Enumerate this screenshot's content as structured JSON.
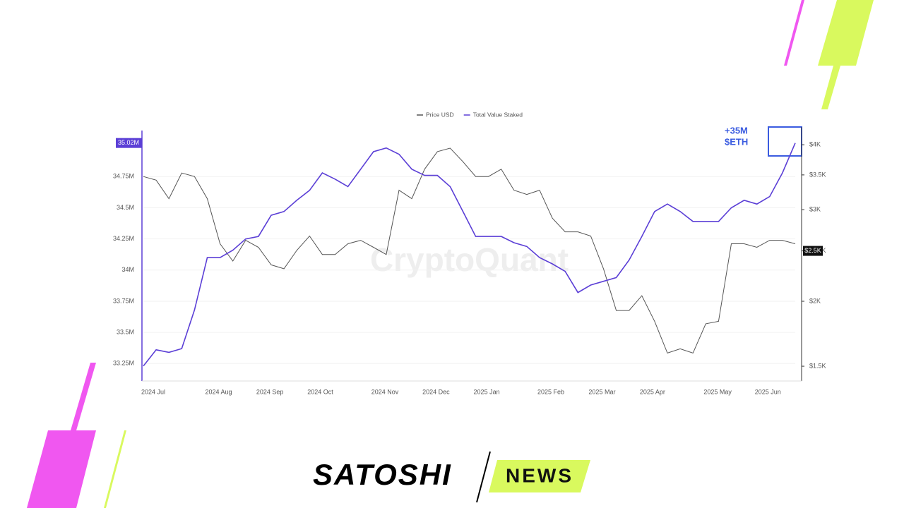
{
  "chart_data": {
    "type": "line",
    "legend": "top",
    "grid": true,
    "watermark": "CryptoQuant",
    "annotation": [
      "+35M",
      "$ETH"
    ],
    "categories": [
      "2024 Jul",
      null,
      null,
      null,
      null,
      "2024 Aug",
      null,
      null,
      null,
      "2024 Sep",
      null,
      null,
      null,
      "2024 Oct",
      null,
      null,
      null,
      null,
      "2024 Nov",
      null,
      null,
      null,
      "2024 Dec",
      null,
      null,
      null,
      "2025 Jan",
      null,
      null,
      null,
      null,
      "2025 Feb",
      null,
      null,
      null,
      "2025 Mar",
      null,
      null,
      null,
      "2025 Apr",
      null,
      null,
      null,
      null,
      "2025 May",
      null,
      null,
      null,
      "2025 Jun",
      null,
      null,
      null
    ],
    "series": [
      {
        "name": "Price USD",
        "color": "#555555",
        "axis": "y2",
        "values": [
          3475,
          3420,
          3150,
          3530,
          3475,
          3150,
          2580,
          2390,
          2620,
          2540,
          2350,
          2310,
          2505,
          2670,
          2460,
          2460,
          2580,
          2620,
          2540,
          2460,
          3270,
          3150,
          3590,
          3880,
          3940,
          3710,
          3475,
          3475,
          3590,
          3270,
          3210,
          3270,
          2890,
          2720,
          2720,
          2670,
          2310,
          1920,
          1920,
          2050,
          1830,
          1590,
          1620,
          1590,
          1810,
          1830,
          2580,
          2580,
          2540,
          2620,
          2620,
          2580
        ]
      },
      {
        "name": "Total Value Staked",
        "color": "#5b3fd6",
        "values": [
          33.23,
          33.36,
          33.34,
          33.37,
          33.68,
          34.1,
          34.1,
          34.16,
          34.25,
          34.27,
          34.44,
          34.47,
          34.56,
          34.64,
          34.78,
          34.73,
          34.67,
          34.81,
          34.95,
          34.98,
          34.93,
          34.81,
          34.76,
          34.76,
          34.67,
          34.47,
          34.27,
          34.27,
          34.27,
          34.22,
          34.19,
          34.1,
          34.05,
          33.99,
          33.82,
          33.88,
          33.91,
          33.94,
          34.08,
          34.27,
          34.47,
          34.53,
          34.47,
          34.39,
          34.39,
          34.39,
          34.5,
          34.56,
          34.53,
          34.59,
          34.78,
          35.02
        ]
      }
    ],
    "ylim": [
      33.11,
      35.12
    ],
    "yticks": [
      {
        "value": 33.25,
        "label": "33.25M"
      },
      {
        "value": 33.5,
        "label": "33.5M"
      },
      {
        "value": 33.75,
        "label": "33.75M"
      },
      {
        "value": 34,
        "label": "34M"
      },
      {
        "value": 34.25,
        "label": "34.25M"
      },
      {
        "value": 34.5,
        "label": "34.5M"
      },
      {
        "value": 34.75,
        "label": "34.75M"
      }
    ],
    "y2scale": "log",
    "y2lim": [
      1405,
      4260
    ],
    "y2ticks": [
      {
        "value": 1500,
        "label": "$1.5K"
      },
      {
        "value": 2000,
        "label": "$2K"
      },
      {
        "value": 2500,
        "label": "$2.5K"
      },
      {
        "value": 3000,
        "label": "$3K"
      },
      {
        "value": 3500,
        "label": "$3.5K"
      },
      {
        "value": 4000,
        "label": "$4K"
      }
    ],
    "markers": [
      {
        "axis": "y",
        "value": 35.02,
        "label": "35.02M"
      },
      {
        "axis": "y2",
        "value": 2500,
        "label": "$2.5K"
      }
    ]
  },
  "branding": {
    "name": "SATOSHI",
    "tag": "NEWS"
  }
}
